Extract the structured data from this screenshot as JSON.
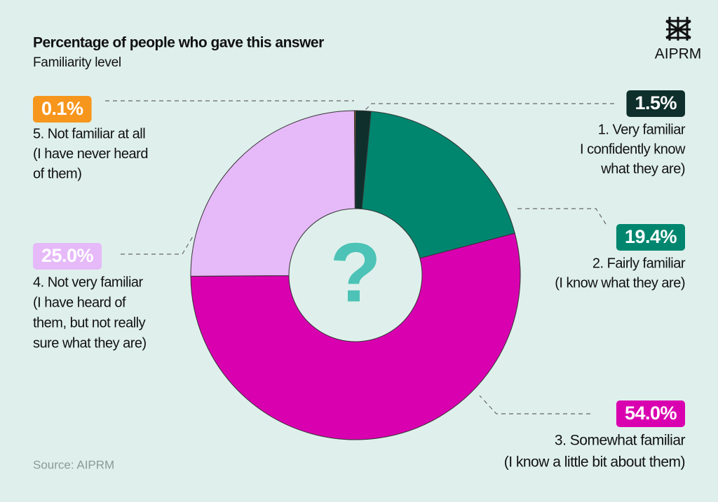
{
  "chart_data": {
    "type": "pie",
    "title": "Percentage of people who gave this answer",
    "subtitle": "Familiarity level",
    "source": "Source: AIPRM",
    "brand": "AIPRM",
    "center_text": "?",
    "values": [
      1.5,
      19.4,
      54.0,
      25.0,
      0.1
    ],
    "value_labels": [
      "1.5%",
      "19.4%",
      "54.0%",
      "25.0%",
      "0.1%"
    ],
    "labels": [
      [
        "1. Very familiar",
        "I confidently know",
        "what they are)"
      ],
      [
        "2. Fairly familiar",
        "(I know what they are)"
      ],
      [
        "3. Somewhat familiar",
        "(I know a little bit about them)"
      ],
      [
        "4. Not very familiar",
        "(I have heard of",
        "them, but not really",
        "sure what they are)"
      ],
      [
        "5. Not familiar at all",
        "(I have never heard",
        "of them)"
      ]
    ],
    "colors": [
      "#0e2f2c",
      "#00866f",
      "#d900b0",
      "#e6b9f8",
      "#f7961d"
    ]
  }
}
